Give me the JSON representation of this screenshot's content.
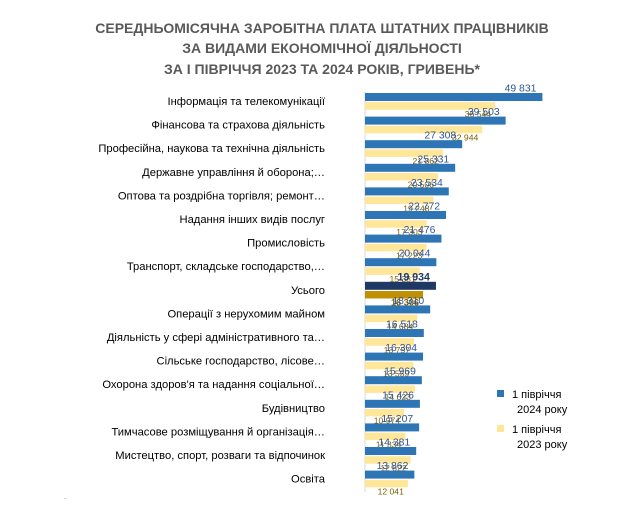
{
  "chart_data": {
    "type": "bar",
    "orientation": "horizontal",
    "title_lines": [
      "СЕРЕДНЬОМІСЯЧНА ЗАРОБІТНА ПЛАТА ШТАТНИХ ПРАЦІВНИКІВ",
      "ЗА ВИДАМИ ЕКОНОМІЧНОЇ ДІЯЛЬНОСТІ",
      "ЗА І ПІВРІЧЧЯ 2023 ТА 2024 РОКІВ, ГРИВЕНЬ*"
    ],
    "categories": [
      "Інформація та телекомунікації",
      "Фінансова та страхова діяльність",
      "Професійна, наукова та технічна діяльність",
      "Державне управління й оборона;…",
      "Оптова та роздрібна торгівля; ремонт…",
      "Надання інших видів послуг",
      "Промисловість",
      "Транспорт, складське господарство,…",
      "Усього",
      "Операції з нерухомим майном",
      "Діяльність у сфері адміністративного та…",
      "Сільське господарство, лісове…",
      "Охорона здоров'я та надання соціальної…",
      "Будівництво",
      "Тимчасове розміщування й організація…",
      "Мистецтво, спорт, розваги та відпочинок",
      "Освіта"
    ],
    "series": [
      {
        "name": "1 півріччя 2024 року",
        "legend_lines": [
          "1 півріччя",
          "2024 року"
        ],
        "color": "#2E75B6",
        "highlight_color": "#1F3864",
        "values": [
          49831,
          39503,
          27308,
          25331,
          23534,
          22772,
          21476,
          20044,
          19934,
          18310,
          16518,
          16304,
          15969,
          15426,
          15207,
          14381,
          13862
        ],
        "labels": [
          "49 831",
          "39 503",
          "27 308",
          "25 331",
          "23 534",
          "22 772",
          "21 476",
          "20 044",
          "19 934",
          "18 310",
          "16 518",
          "16 304",
          "15 969",
          "15 426",
          "15 207",
          "14 381",
          "13 862"
        ]
      },
      {
        "name": "1 півріччя 2023 року",
        "legend_lines": [
          "1 півріччя",
          "2023 року"
        ],
        "color": "#FFE699",
        "highlight_color": "#BF9000",
        "values": [
          36544,
          32944,
          21862,
          20506,
          19248,
          17303,
          17223,
          15381,
          16306,
          14684,
          13757,
          13559,
          14023,
          10974,
          11334,
          12822,
          12041
        ],
        "labels": [
          "36 544",
          "32 944",
          "21 862",
          "20 506",
          "19 248",
          "17 303",
          "17 223",
          "15 381",
          "16 306",
          "14 684",
          "13 757",
          "13 559",
          "14 023",
          "10 974",
          "11 334",
          "12 822",
          "12 041"
        ]
      }
    ],
    "highlight_category": "Усього",
    "xlim": [
      0,
      50000
    ],
    "grid": false,
    "legend_position": "bottom-right"
  }
}
